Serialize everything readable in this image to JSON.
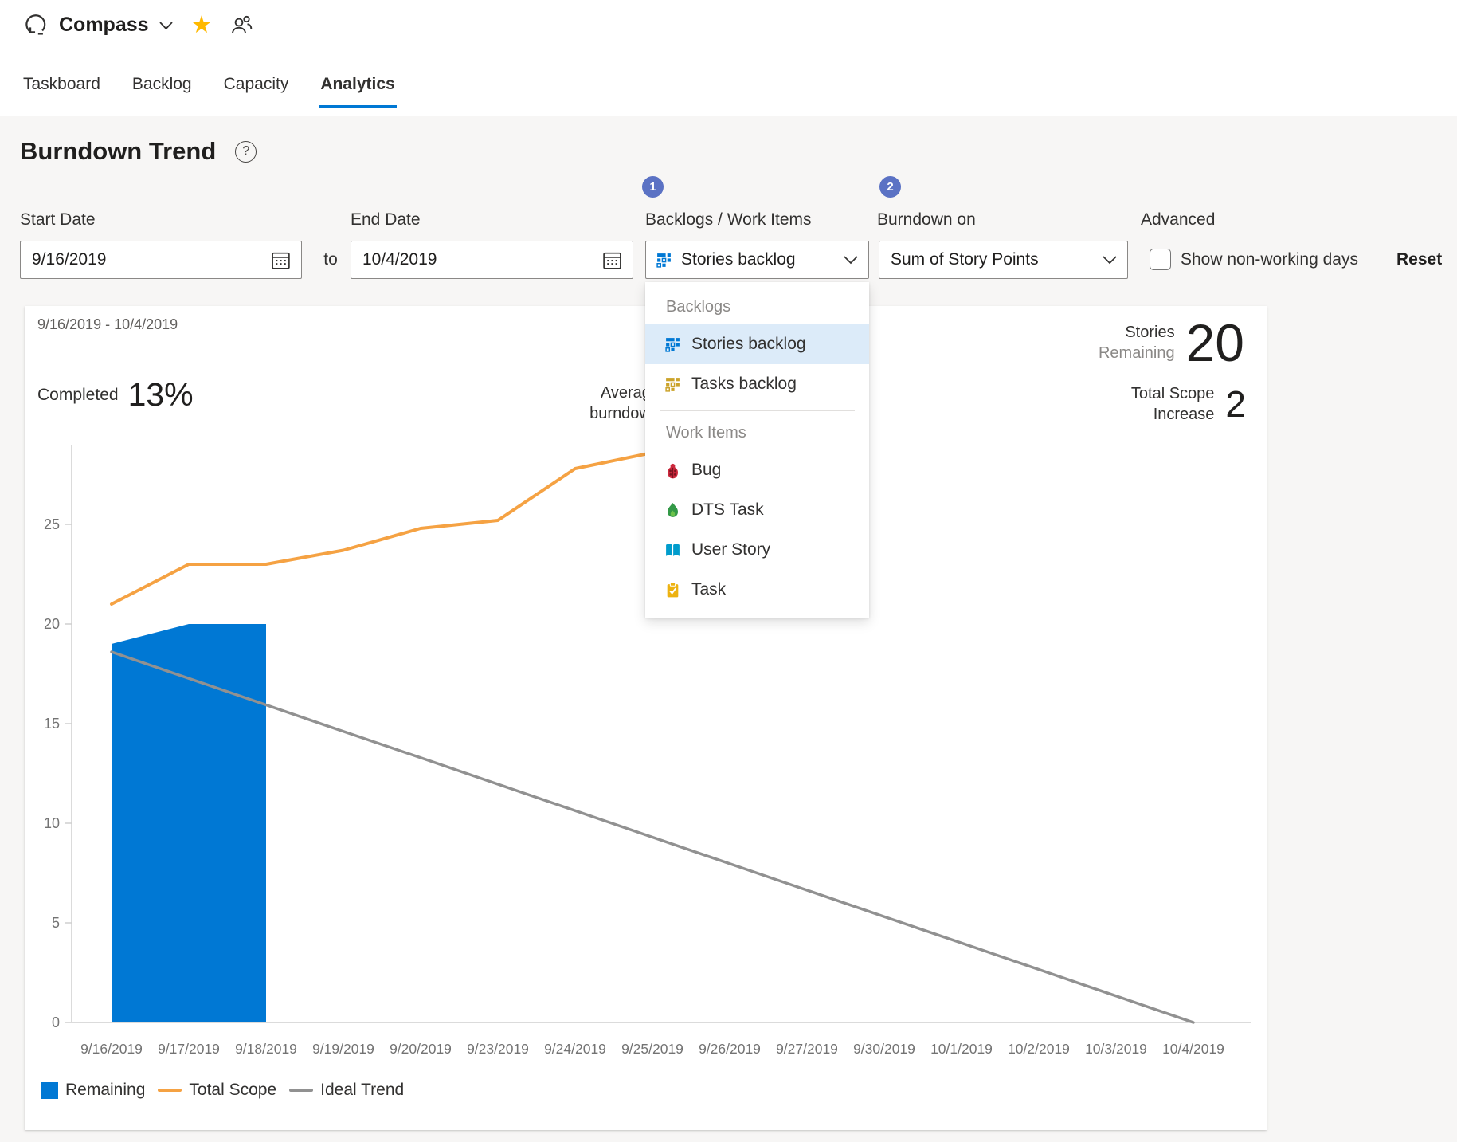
{
  "header": {
    "title": "Compass",
    "tabs": [
      {
        "label": "Taskboard"
      },
      {
        "label": "Backlog"
      },
      {
        "label": "Capacity"
      },
      {
        "label": "Analytics"
      }
    ]
  },
  "page": {
    "title": "Burndown Trend",
    "help": "?"
  },
  "filters": {
    "start_date": {
      "label": "Start Date",
      "value": "9/16/2019"
    },
    "to_label": "to",
    "end_date": {
      "label": "End Date",
      "value": "10/4/2019"
    },
    "backlogs": {
      "badge": "1",
      "label": "Backlogs / Work Items",
      "value": "Stories backlog"
    },
    "burndown_on": {
      "badge": "2",
      "label": "Burndown on",
      "value": "Sum of Story Points"
    },
    "advanced": {
      "label": "Advanced",
      "checkbox_label": "Show non-working days",
      "reset_label": "Reset"
    }
  },
  "dropdown": {
    "sections": [
      {
        "header": "Backlogs",
        "items": [
          {
            "label": "Stories backlog",
            "icon": "stories-backlog-icon",
            "selected": true
          },
          {
            "label": "Tasks backlog",
            "icon": "tasks-backlog-icon",
            "selected": false
          }
        ]
      },
      {
        "header": "Work Items",
        "items": [
          {
            "label": "Bug",
            "icon": "bug-icon",
            "selected": false
          },
          {
            "label": "DTS Task",
            "icon": "dts-task-icon",
            "selected": false
          },
          {
            "label": "User Story",
            "icon": "user-story-icon",
            "selected": false
          },
          {
            "label": "Task",
            "icon": "task-icon",
            "selected": false
          }
        ]
      }
    ]
  },
  "card": {
    "date_range": "9/16/2019 - 10/4/2019",
    "completed": {
      "label": "Completed",
      "value": "13%"
    },
    "average_burndown": {
      "line1": "Average",
      "line2": "burndown"
    },
    "stories_remaining": {
      "line1": "Stories",
      "line2": "Remaining",
      "value": "20"
    },
    "total_scope_increase": {
      "line1": "Total Scope",
      "line2": "Increase",
      "value": "2"
    }
  },
  "colors": {
    "accent": "#0078D4",
    "remaining_area": "#0078D4",
    "total_scope_line": "#F5A243",
    "ideal_trend_line": "#919191",
    "badge": "#5B72C4",
    "favorite_star": "#FFB900",
    "selected_row_bg": "#DCEBF9"
  },
  "chart_data": {
    "type": "area",
    "title": "",
    "xlabel": "",
    "ylabel": "",
    "categories": [
      "9/16/2019",
      "9/17/2019",
      "9/18/2019",
      "9/19/2019",
      "9/20/2019",
      "9/23/2019",
      "9/24/2019",
      "9/25/2019",
      "9/26/2019",
      "9/27/2019",
      "9/30/2019",
      "10/1/2019",
      "10/2/2019",
      "10/3/2019",
      "10/4/2019"
    ],
    "ylim": [
      0,
      29
    ],
    "yticks": [
      0,
      5,
      10,
      15,
      20,
      25
    ],
    "grid": false,
    "legend_position": "bottom-left",
    "legend": [
      "Remaining",
      "Total Scope",
      "Ideal Trend"
    ],
    "series": [
      {
        "name": "Remaining",
        "type": "area",
        "color": "#0078D4",
        "values": [
          19,
          20,
          20,
          null,
          null,
          null,
          null,
          null,
          null,
          null,
          null,
          null,
          null,
          null,
          null
        ]
      },
      {
        "name": "Total Scope",
        "type": "line",
        "color": "#F5A243",
        "width": 4,
        "values": [
          21,
          23,
          23,
          23.7,
          24.8,
          25.2,
          27.8,
          28.6,
          null,
          null,
          null,
          null,
          null,
          null,
          null
        ]
      },
      {
        "name": "Ideal Trend",
        "type": "line",
        "color": "#919191",
        "width": 3.5,
        "values": [
          18.6,
          17.27,
          15.94,
          14.61,
          13.29,
          11.96,
          10.63,
          9.3,
          7.97,
          6.64,
          5.31,
          3.99,
          2.66,
          1.33,
          0
        ]
      }
    ]
  }
}
